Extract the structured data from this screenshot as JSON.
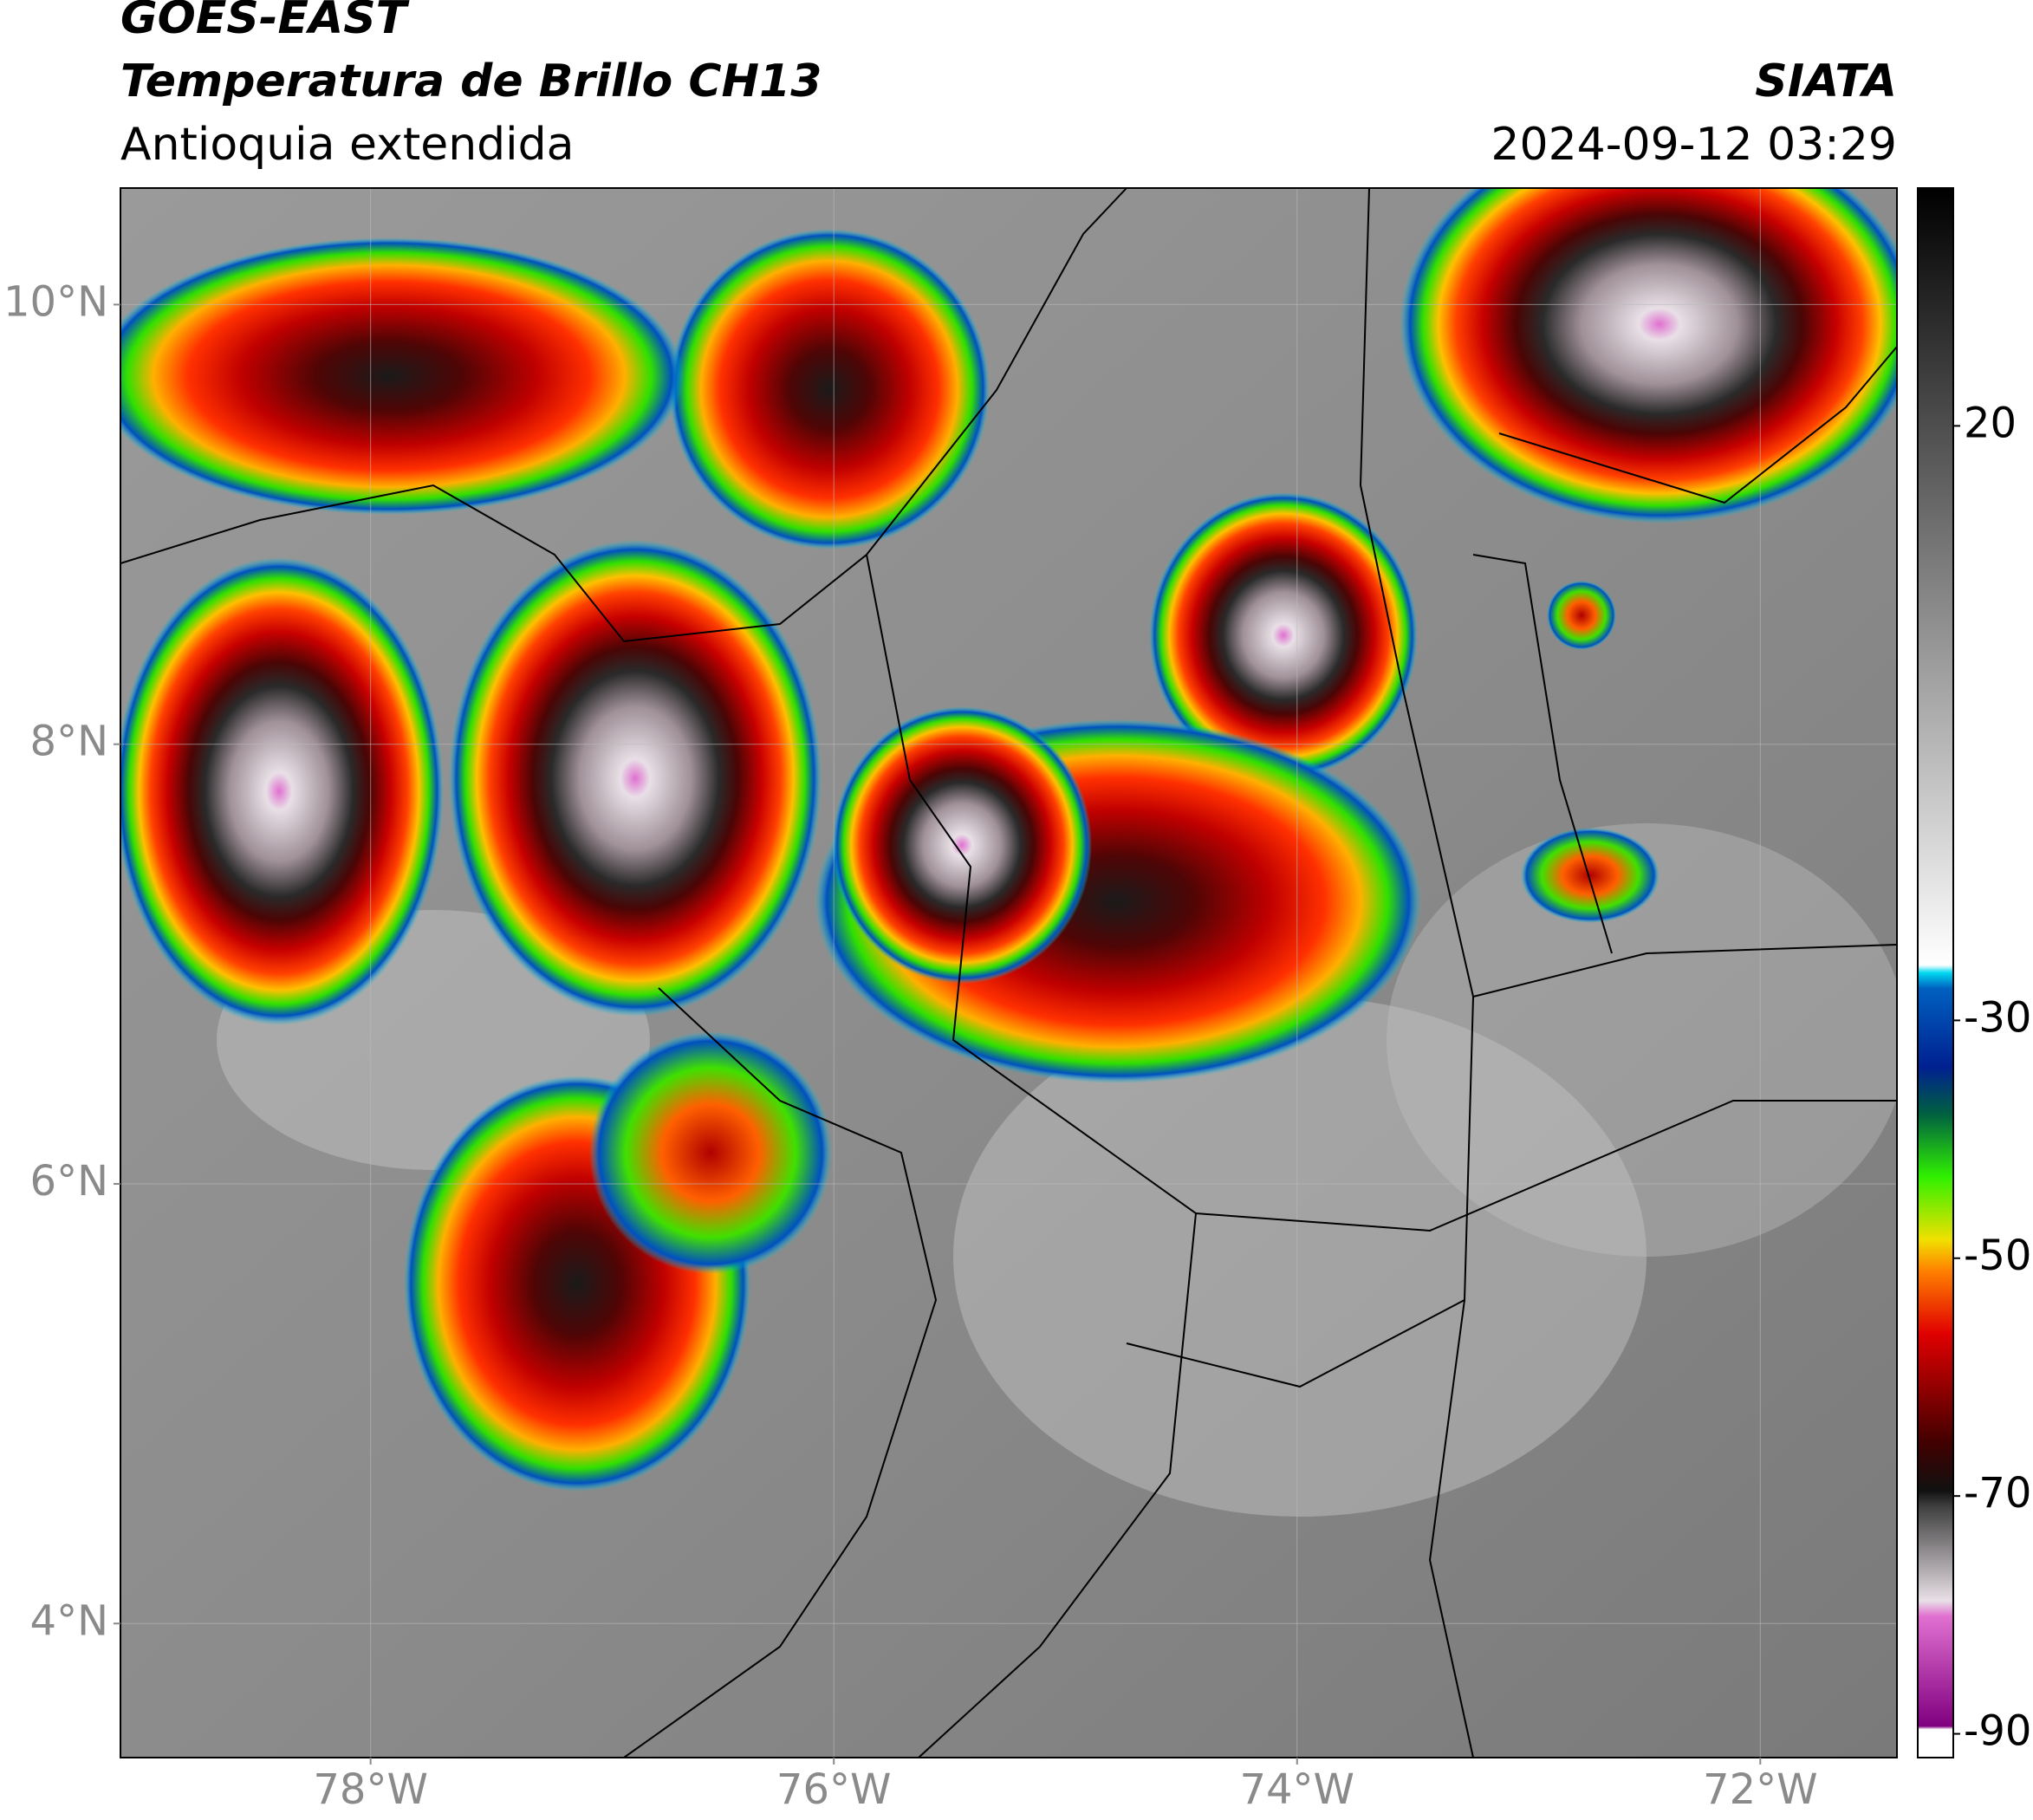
{
  "header": {
    "title": "GOES-EAST",
    "subtitle": "Temperatura de Brillo CH13",
    "region": "Antioquia extendida",
    "source": "SIATA",
    "datetime": "2024-09-12 03:29"
  },
  "map": {
    "xlim": [
      -79.08,
      -71.41
    ],
    "ylim": [
      3.39,
      10.53
    ],
    "xticks": [
      {
        "value": -78,
        "label": "78°W"
      },
      {
        "value": -76,
        "label": "76°W"
      },
      {
        "value": -74,
        "label": "74°W"
      },
      {
        "value": -72,
        "label": "72°W"
      }
    ],
    "yticks": [
      {
        "value": 4,
        "label": "4°N"
      },
      {
        "value": 6,
        "label": "6°N"
      },
      {
        "value": 8,
        "label": "8°N"
      },
      {
        "value": 10,
        "label": "10°N"
      }
    ],
    "grid": true
  },
  "colorbar": {
    "lim": [
      -92,
      40
    ],
    "ticks": [
      -90,
      -70,
      -50,
      -30,
      20
    ]
  }
}
